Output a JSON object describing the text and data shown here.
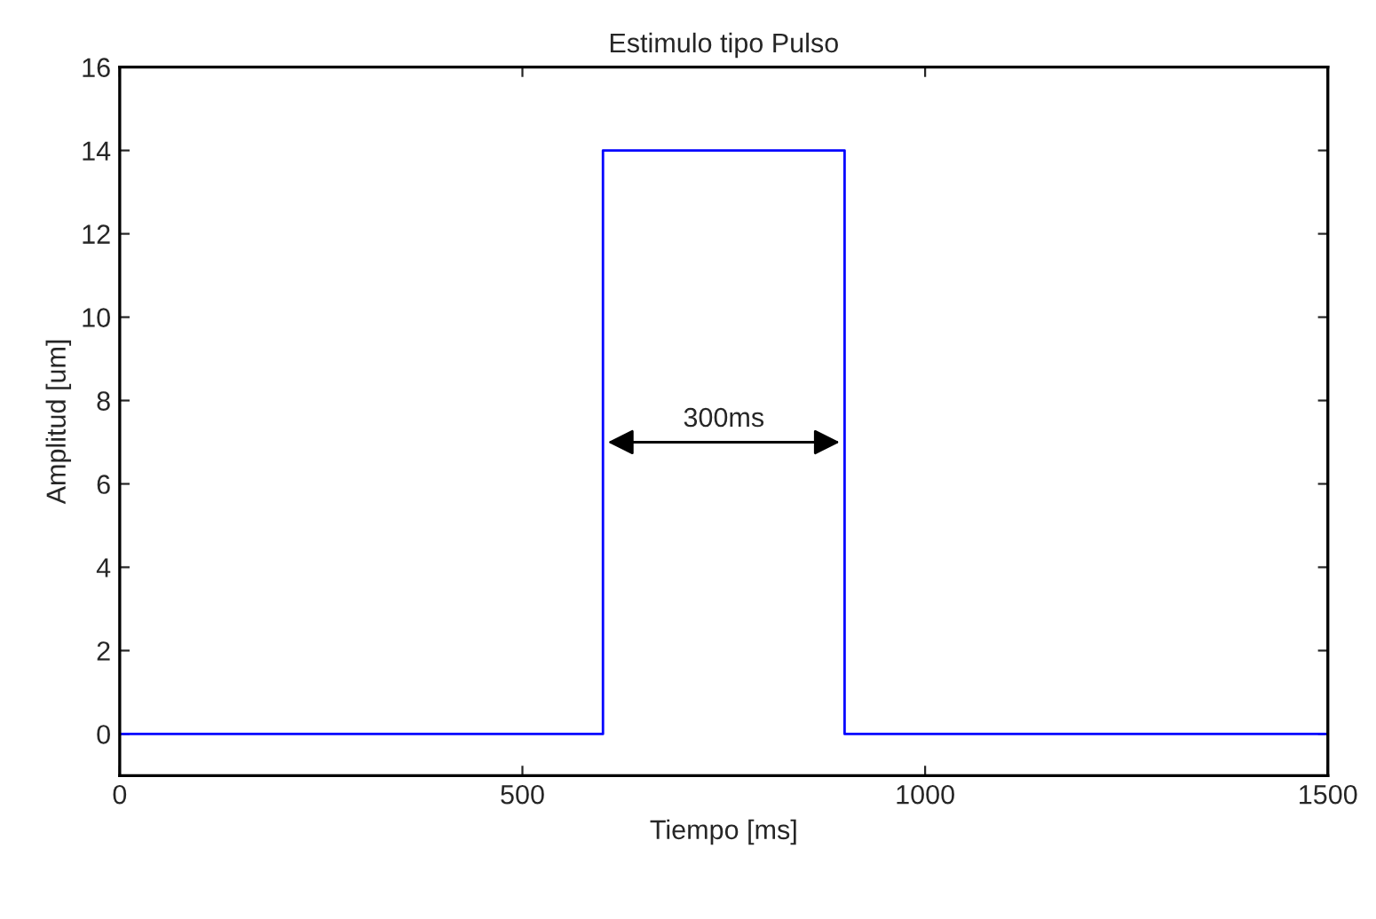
{
  "chart_data": {
    "type": "line",
    "title": "Estimulo tipo Pulso",
    "xlabel": "Tiempo [ms]",
    "ylabel": "Amplitud [um]",
    "series": [
      {
        "color": "#0000ff",
        "x": [
          0,
          600,
          600,
          900,
          900,
          1500
        ],
        "values": [
          0,
          0,
          14,
          14,
          0,
          0
        ]
      }
    ],
    "xlim": [
      0,
      1500
    ],
    "xticks": [
      0,
      500,
      1000,
      1500
    ],
    "ylim": [
      -1,
      16
    ],
    "yticks": [
      0,
      2,
      4,
      6,
      8,
      10,
      12,
      14,
      16
    ],
    "annotations": [
      "300ms"
    ],
    "grid": false,
    "legend": false
  }
}
